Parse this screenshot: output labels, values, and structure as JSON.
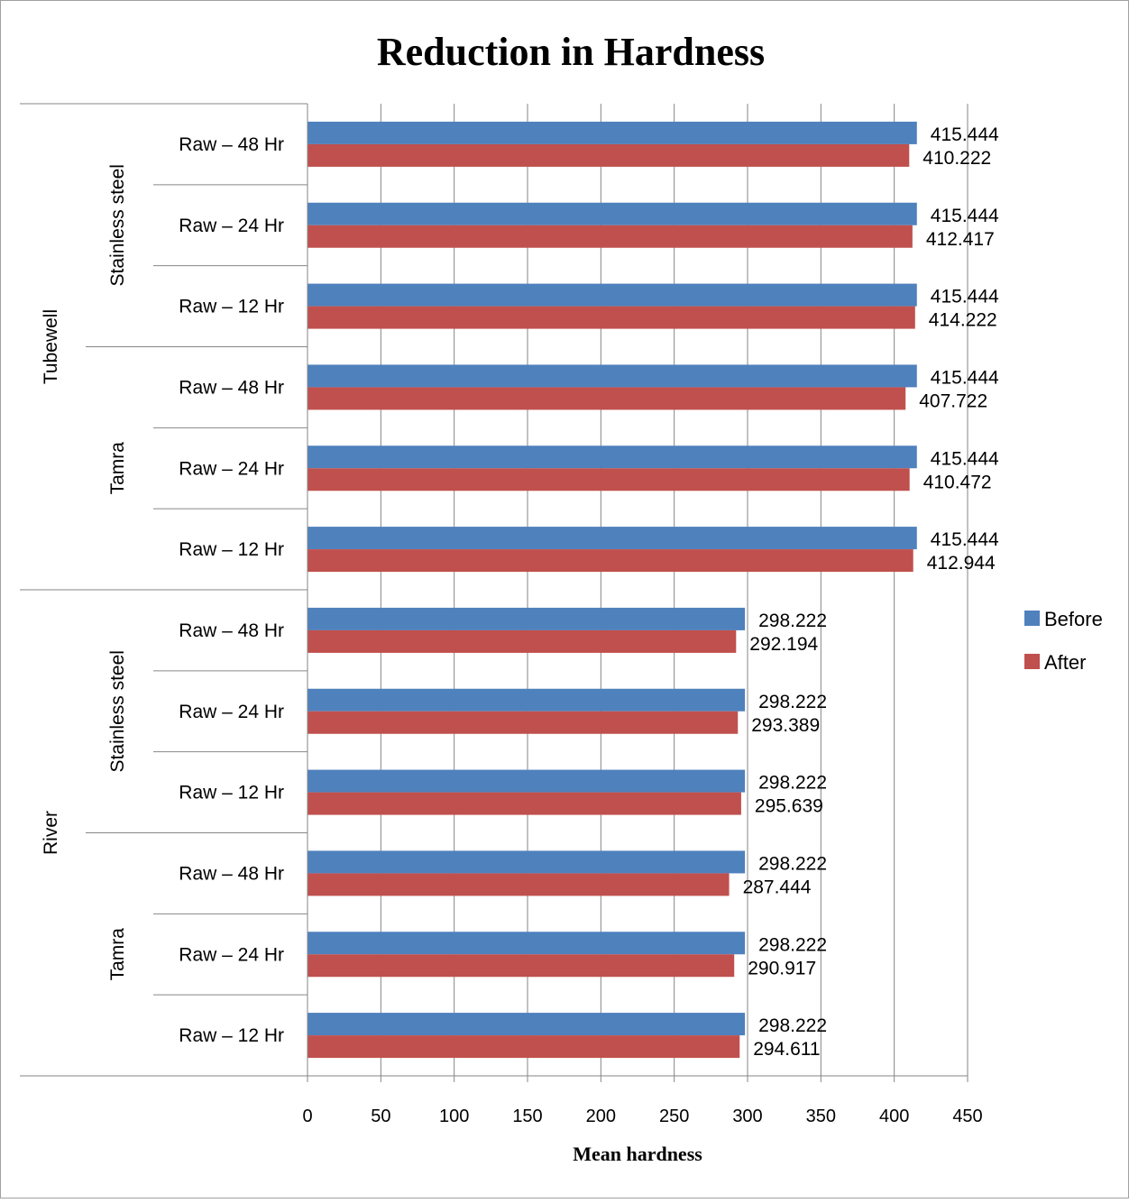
{
  "chart_data": {
    "type": "bar",
    "orientation": "horizontal",
    "title": "Reduction in Hardness",
    "xlabel": "Mean hardness",
    "ylabel": "",
    "xlim": [
      0,
      450
    ],
    "xticks": [
      "0",
      "50",
      "100",
      "150",
      "200",
      "250",
      "300",
      "350",
      "400",
      "450"
    ],
    "grid": true,
    "legend_position": "right",
    "categories": [
      {
        "label": "Raw – 48 Hr",
        "material": "Stainless steel",
        "source": "Tubewell"
      },
      {
        "label": "Raw – 24 Hr",
        "material": "Stainless steel",
        "source": "Tubewell"
      },
      {
        "label": "Raw – 12 Hr",
        "material": "Stainless steel",
        "source": "Tubewell"
      },
      {
        "label": "Raw – 48 Hr",
        "material": "Tamra",
        "source": "Tubewell"
      },
      {
        "label": "Raw – 24 Hr",
        "material": "Tamra",
        "source": "Tubewell"
      },
      {
        "label": "Raw – 12 Hr",
        "material": "Tamra",
        "source": "Tubewell"
      },
      {
        "label": "Raw – 48 Hr",
        "material": "Stainless steel",
        "source": "River"
      },
      {
        "label": "Raw – 24 Hr",
        "material": "Stainless steel",
        "source": "River"
      },
      {
        "label": "Raw – 12 Hr",
        "material": "Stainless steel",
        "source": "River"
      },
      {
        "label": "Raw – 48 Hr",
        "material": "Tamra",
        "source": "River"
      },
      {
        "label": "Raw – 24 Hr",
        "material": "Tamra",
        "source": "River"
      },
      {
        "label": "Raw – 12 Hr",
        "material": "Tamra",
        "source": "River"
      }
    ],
    "material_groups": [
      "Stainless steel",
      "Tamra",
      "Stainless steel",
      "Tamra"
    ],
    "source_groups": [
      "Tubewell",
      "River"
    ],
    "series": [
      {
        "name": "Before",
        "color": "#4F81BD",
        "values": [
          415.444,
          415.444,
          415.444,
          415.444,
          415.444,
          415.444,
          298.222,
          298.222,
          298.222,
          298.222,
          298.222,
          298.222
        ],
        "labels": [
          "415.444",
          "415.444",
          "415.444",
          "415.444",
          "415.444",
          "415.444",
          "298.222",
          "298.222",
          "298.222",
          "298.222",
          "298.222",
          "298.222"
        ]
      },
      {
        "name": "After",
        "color": "#C0504D",
        "values": [
          410.222,
          412.417,
          414.222,
          407.722,
          410.472,
          412.944,
          292.194,
          293.389,
          295.639,
          287.444,
          290.917,
          294.611
        ],
        "labels": [
          "410.222",
          "412.417",
          "414.222",
          "407.722",
          "410.472",
          "412.944",
          "292.194",
          "293.389",
          "295.639",
          "287.444",
          "290.917",
          "294.611"
        ]
      }
    ]
  }
}
